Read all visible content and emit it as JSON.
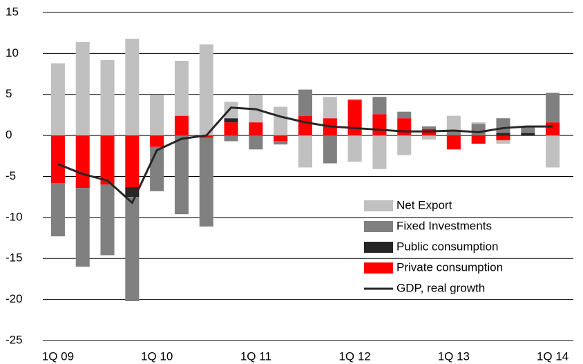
{
  "chart_data": {
    "type": "bar",
    "stacked": true,
    "categories": [
      "1Q 09",
      null,
      null,
      null,
      "1Q 10",
      null,
      null,
      null,
      "1Q 11",
      null,
      null,
      null,
      "1Q 12",
      null,
      null,
      null,
      "1Q 13",
      null,
      null,
      null,
      "1Q 14"
    ],
    "series": [
      {
        "name": "Net Export",
        "type": "bar",
        "color": "#c0c0c0",
        "values": [
          8.8,
          11.4,
          9.2,
          11.8,
          4.9,
          6.7,
          11.1,
          2.0,
          3.3,
          3.5,
          -3.9,
          2.6,
          -3.2,
          -4.1,
          -2.4,
          -0.5,
          1.9,
          0.2,
          -0.4,
          0,
          -3.9
        ]
      },
      {
        "name": "Fixed Investments",
        "type": "bar",
        "color": "#808080",
        "values": [
          -6.5,
          -9.6,
          -8.6,
          -12.7,
          -5.4,
          -9.6,
          -10.8,
          -0.7,
          -1.7,
          -0.4,
          3.2,
          -3.4,
          0.1,
          2.1,
          0.8,
          0.3,
          0.5,
          1.4,
          1.8,
          0.8,
          3.6
        ]
      },
      {
        "name": "Public consumption",
        "type": "bar",
        "color": "#262626",
        "values": [
          0,
          0,
          0,
          -1.2,
          0,
          0,
          0,
          0.5,
          0,
          0,
          0,
          0,
          0,
          0,
          0,
          0,
          0,
          0,
          0.3,
          0.3,
          0
        ]
      },
      {
        "name": "Private consumption",
        "type": "bar",
        "color": "#ff0000",
        "values": [
          -5.8,
          -6.4,
          -6.0,
          -6.3,
          -1.4,
          2.4,
          -0.3,
          1.6,
          1.6,
          -0.7,
          2.4,
          2.1,
          4.3,
          2.6,
          2.1,
          0.8,
          -1.7,
          -1.0,
          -0.6,
          0,
          1.6
        ]
      },
      {
        "name": "GDP, real growth",
        "type": "line",
        "color": "#262626",
        "values": [
          -3.5,
          -4.7,
          -5.5,
          -8.2,
          -1.8,
          -0.4,
          0,
          3.4,
          3.2,
          2.3,
          1.6,
          1.1,
          0.9,
          0.7,
          0.5,
          0.5,
          0.6,
          0.4,
          0.9,
          1.1,
          1.1
        ]
      }
    ],
    "ylim": [
      -25,
      15
    ],
    "yticks": [
      -25,
      -20,
      -15,
      -10,
      -5,
      0,
      5,
      10,
      15
    ],
    "grid": true,
    "legend": "lower right"
  }
}
